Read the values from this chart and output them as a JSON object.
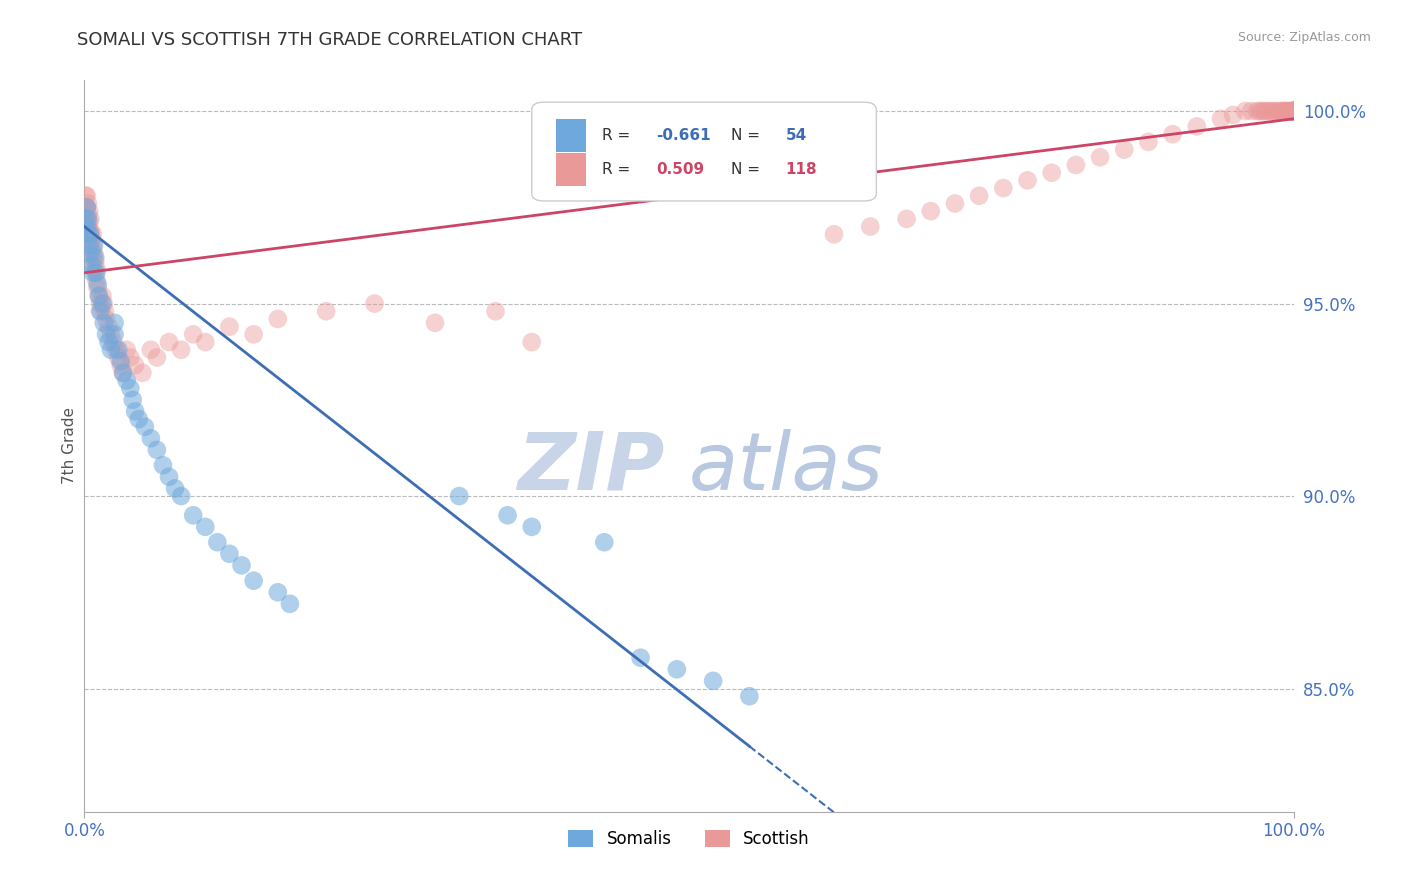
{
  "title": "SOMALI VS SCOTTISH 7TH GRADE CORRELATION CHART",
  "source": "Source: ZipAtlas.com",
  "ylabel": "7th Grade",
  "xlim": [
    0.0,
    1.0
  ],
  "ylim": [
    0.818,
    1.008
  ],
  "somali_R": -0.661,
  "somali_N": 54,
  "scottish_R": 0.509,
  "scottish_N": 118,
  "somali_color": "#6fa8dc",
  "scottish_color": "#ea9999",
  "somali_trend_color": "#3d6eb5",
  "scottish_trend_color": "#cc4466",
  "legend_label_somali": "Somalis",
  "legend_label_scottish": "Scottish",
  "watermark_zip": "ZIP",
  "watermark_atlas": "atlas",
  "watermark_color_zip": "#c8d4e8",
  "watermark_color_atlas": "#b8c8e0",
  "background_color": "#ffffff",
  "grid_color": "#bbbbbb",
  "tick_label_color": "#4472c4",
  "title_color": "#333333",
  "somali_x": [
    0.001,
    0.002,
    0.002,
    0.003,
    0.003,
    0.004,
    0.005,
    0.005,
    0.006,
    0.007,
    0.008,
    0.009,
    0.01,
    0.011,
    0.012,
    0.013,
    0.015,
    0.016,
    0.018,
    0.02,
    0.022,
    0.025,
    0.025,
    0.028,
    0.03,
    0.032,
    0.035,
    0.038,
    0.04,
    0.042,
    0.045,
    0.05,
    0.055,
    0.06,
    0.065,
    0.07,
    0.075,
    0.08,
    0.09,
    0.1,
    0.11,
    0.12,
    0.13,
    0.14,
    0.16,
    0.17,
    0.31,
    0.35,
    0.37,
    0.43,
    0.46,
    0.49,
    0.52,
    0.55
  ],
  "somali_y": [
    0.972,
    0.975,
    0.97,
    0.968,
    0.972,
    0.965,
    0.968,
    0.963,
    0.96,
    0.958,
    0.965,
    0.962,
    0.958,
    0.955,
    0.952,
    0.948,
    0.95,
    0.945,
    0.942,
    0.94,
    0.938,
    0.945,
    0.942,
    0.938,
    0.935,
    0.932,
    0.93,
    0.928,
    0.925,
    0.922,
    0.92,
    0.918,
    0.915,
    0.912,
    0.908,
    0.905,
    0.902,
    0.9,
    0.895,
    0.892,
    0.888,
    0.885,
    0.882,
    0.878,
    0.875,
    0.872,
    0.9,
    0.895,
    0.892,
    0.888,
    0.858,
    0.855,
    0.852,
    0.848
  ],
  "scottish_x": [
    0.001,
    0.001,
    0.002,
    0.002,
    0.002,
    0.003,
    0.003,
    0.003,
    0.004,
    0.004,
    0.004,
    0.005,
    0.005,
    0.005,
    0.006,
    0.006,
    0.007,
    0.007,
    0.007,
    0.008,
    0.008,
    0.009,
    0.009,
    0.01,
    0.01,
    0.011,
    0.012,
    0.013,
    0.014,
    0.015,
    0.016,
    0.017,
    0.018,
    0.02,
    0.022,
    0.024,
    0.026,
    0.028,
    0.03,
    0.032,
    0.035,
    0.038,
    0.042,
    0.048,
    0.055,
    0.06,
    0.07,
    0.08,
    0.09,
    0.1,
    0.12,
    0.14,
    0.16,
    0.2,
    0.24,
    0.29,
    0.34,
    0.37,
    0.62,
    0.65,
    0.68,
    0.7,
    0.72,
    0.74,
    0.76,
    0.78,
    0.8,
    0.82,
    0.84,
    0.86,
    0.88,
    0.9,
    0.92,
    0.94,
    0.95,
    0.96,
    0.965,
    0.97,
    0.972,
    0.974,
    0.976,
    0.978,
    0.98,
    0.982,
    0.984,
    0.986,
    0.988,
    0.99,
    0.991,
    0.992,
    0.993,
    0.994,
    0.995,
    0.996,
    0.997,
    0.998,
    0.999,
    1.0,
    1.0,
    1.0,
    1.0,
    1.0,
    1.0,
    1.0,
    1.0,
    1.0,
    1.0,
    1.0,
    1.0,
    1.0,
    1.0,
    1.0,
    1.0,
    1.0,
    1.0,
    1.0
  ],
  "scottish_y": [
    0.978,
    0.975,
    0.972,
    0.975,
    0.978,
    0.97,
    0.973,
    0.976,
    0.968,
    0.971,
    0.974,
    0.966,
    0.969,
    0.972,
    0.964,
    0.967,
    0.962,
    0.965,
    0.968,
    0.96,
    0.963,
    0.958,
    0.961,
    0.956,
    0.959,
    0.954,
    0.952,
    0.95,
    0.948,
    0.952,
    0.95,
    0.948,
    0.946,
    0.944,
    0.942,
    0.94,
    0.938,
    0.936,
    0.934,
    0.932,
    0.938,
    0.936,
    0.934,
    0.932,
    0.938,
    0.936,
    0.94,
    0.938,
    0.942,
    0.94,
    0.944,
    0.942,
    0.946,
    0.948,
    0.95,
    0.945,
    0.948,
    0.94,
    0.968,
    0.97,
    0.972,
    0.974,
    0.976,
    0.978,
    0.98,
    0.982,
    0.984,
    0.986,
    0.988,
    0.99,
    0.992,
    0.994,
    0.996,
    0.998,
    0.999,
    1.0,
    1.0,
    1.0,
    1.0,
    1.0,
    1.0,
    1.0,
    1.0,
    1.0,
    1.0,
    1.0,
    1.0,
    1.0,
    1.0,
    1.0,
    1.0,
    1.0,
    1.0,
    1.0,
    1.0,
    1.0,
    1.0,
    1.0,
    1.0,
    1.0,
    1.0,
    1.0,
    1.0,
    1.0,
    1.0,
    1.0,
    1.0,
    1.0,
    1.0,
    1.0,
    1.0,
    1.0,
    1.0,
    1.0,
    1.0,
    1.0
  ]
}
